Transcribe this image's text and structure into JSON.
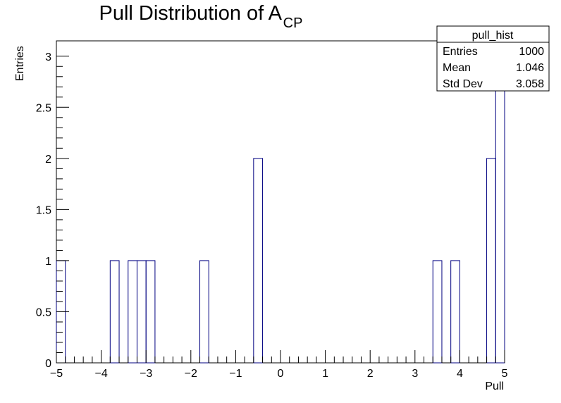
{
  "chart_data": {
    "type": "bar",
    "title_main": "Pull Distribution of A",
    "title_subscript": "CP",
    "xlabel": "Pull",
    "ylabel": "Entries",
    "xlim": [
      -5,
      5
    ],
    "ylim": [
      0,
      3.15
    ],
    "n_bins": 50,
    "bin_width": 0.2,
    "values": [
      1,
      0,
      0,
      0,
      0,
      0,
      1,
      0,
      1,
      1,
      1,
      0,
      0,
      0,
      0,
      0,
      1,
      0,
      0,
      0,
      0,
      0,
      2,
      0,
      0,
      0,
      0,
      0,
      0,
      0,
      0,
      0,
      0,
      0,
      0,
      0,
      0,
      0,
      0,
      0,
      0,
      0,
      1,
      0,
      1,
      0,
      0,
      0,
      2,
      3
    ],
    "line_color": "#000080",
    "x_ticks": [
      -5,
      -4,
      -3,
      -2,
      -1,
      0,
      1,
      2,
      3,
      4,
      5
    ],
    "x_tick_labels": [
      "−5",
      "−4",
      "−3",
      "−2",
      "−1",
      "0",
      "1",
      "2",
      "3",
      "4",
      "5"
    ],
    "y_ticks": [
      0,
      0.5,
      1,
      1.5,
      2,
      2.5,
      3
    ],
    "y_tick_labels": [
      "0",
      "0.5",
      "1",
      "1.5",
      "2",
      "2.5",
      "3"
    ],
    "legend_position": "top-right",
    "stats_box": {
      "name": "pull_hist",
      "rows": [
        {
          "label": "Entries",
          "value": "1000"
        },
        {
          "label": "Mean",
          "value": "1.046"
        },
        {
          "label": "Std Dev",
          "value": "3.058"
        }
      ]
    }
  }
}
